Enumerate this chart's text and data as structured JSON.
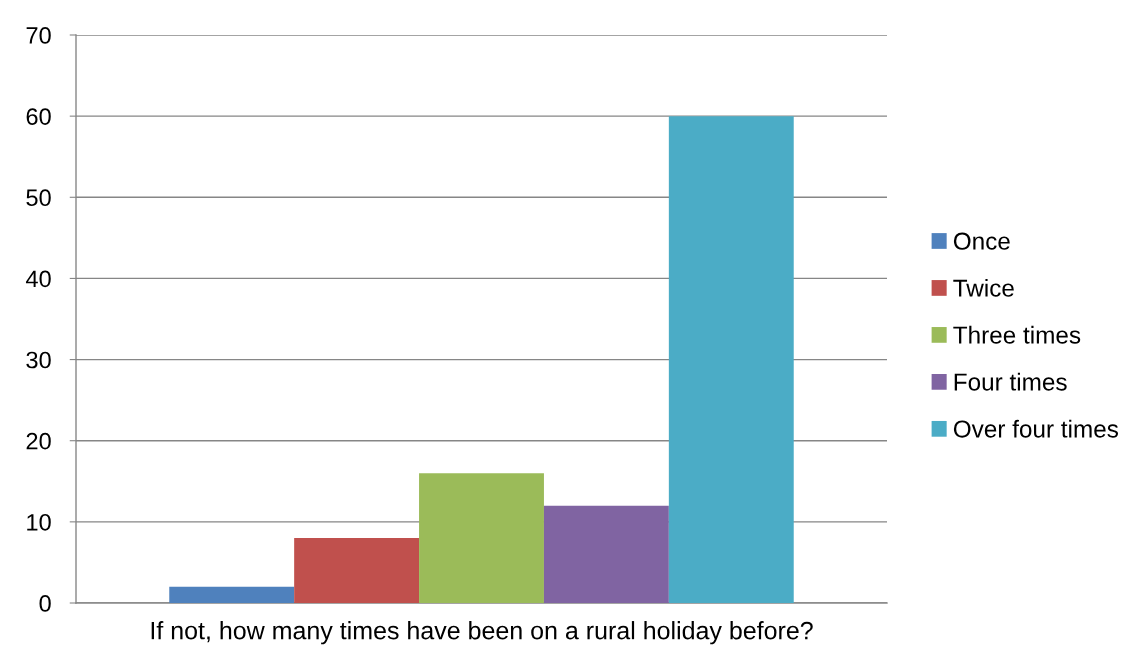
{
  "chart_data": {
    "type": "bar",
    "categories": [
      "If not, how many times have been on a rural holiday before?"
    ],
    "series": [
      {
        "name": "Once",
        "color": "#4f81bd",
        "values": [
          2
        ]
      },
      {
        "name": "Twice",
        "color": "#c0504d",
        "values": [
          8
        ]
      },
      {
        "name": "Three times",
        "color": "#9bbb59",
        "values": [
          16
        ]
      },
      {
        "name": "Four times",
        "color": "#8064a2",
        "values": [
          12
        ]
      },
      {
        "name": "Over four times",
        "color": "#4bacc6",
        "values": [
          60
        ]
      }
    ],
    "ylim": [
      0,
      70
    ],
    "yticks": [
      0,
      10,
      20,
      30,
      40,
      50,
      60,
      70
    ],
    "grid": "y",
    "legend": "right"
  }
}
